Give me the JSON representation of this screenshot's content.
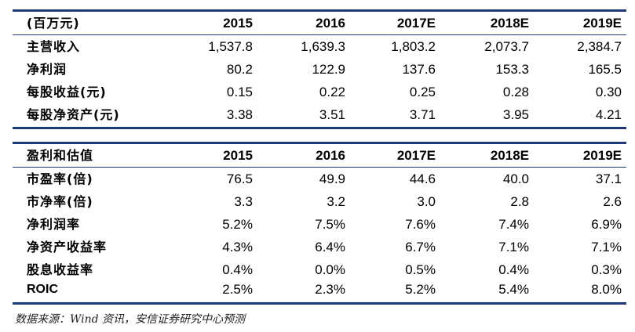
{
  "table1": {
    "header": [
      "(百万元)",
      "2015",
      "2016",
      "2017E",
      "2018E",
      "2019E"
    ],
    "rows": [
      [
        "主营收入",
        "1,537.8",
        "1,639.3",
        "1,803.2",
        "2,073.7",
        "2,384.7"
      ],
      [
        "净利润",
        "80.2",
        "122.9",
        "137.6",
        "153.3",
        "165.5"
      ],
      [
        "每股收益(元)",
        "0.15",
        "0.22",
        "0.25",
        "0.28",
        "0.30"
      ],
      [
        "每股净资产(元)",
        "3.38",
        "3.51",
        "3.71",
        "3.95",
        "4.21"
      ]
    ]
  },
  "table2": {
    "header": [
      "盈利和估值",
      "2015",
      "2016",
      "2017E",
      "2018E",
      "2019E"
    ],
    "rows": [
      [
        "市盈率(倍)",
        "76.5",
        "49.9",
        "44.6",
        "40.0",
        "37.1"
      ],
      [
        "市净率(倍)",
        "3.3",
        "3.2",
        "3.0",
        "2.8",
        "2.6"
      ],
      [
        "净利润率",
        "5.2%",
        "7.5%",
        "7.6%",
        "7.4%",
        "6.9%"
      ],
      [
        "净资产收益率",
        "4.3%",
        "6.4%",
        "6.7%",
        "7.1%",
        "7.1%"
      ],
      [
        "股息收益率",
        "0.4%",
        "0.0%",
        "0.5%",
        "0.4%",
        "0.3%"
      ],
      [
        "ROIC",
        "2.5%",
        "2.3%",
        "5.2%",
        "5.4%",
        "8.0%"
      ]
    ]
  },
  "source": "数据来源：Wind 资讯，安信证券研究中心预测"
}
